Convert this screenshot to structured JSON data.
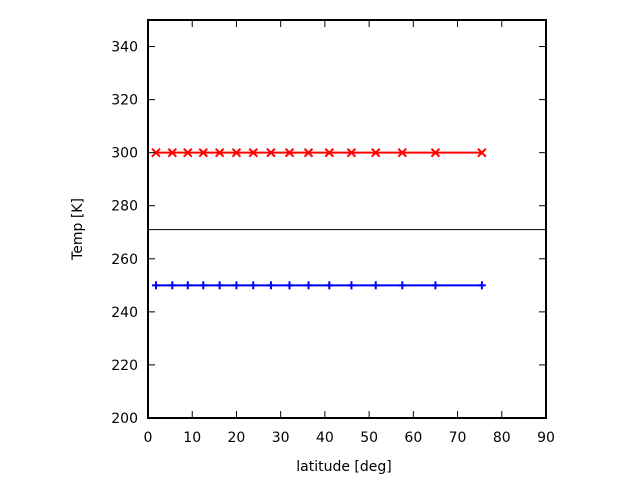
{
  "chart_data": {
    "type": "line",
    "title": "",
    "xlabel": "latitude [deg]",
    "ylabel": "Temp [K]",
    "xlim": [
      0,
      90
    ],
    "ylim": [
      200,
      350
    ],
    "x_ticks": [
      0,
      10,
      20,
      30,
      40,
      50,
      60,
      70,
      80,
      90
    ],
    "y_ticks": [
      200,
      220,
      240,
      260,
      280,
      300,
      320,
      340
    ],
    "grid": false,
    "legend": "none",
    "reference_line": {
      "y": 271
    },
    "series": [
      {
        "color": "#ff0000",
        "marker": "x",
        "points": [
          {
            "x": 1.8,
            "y": 300
          },
          {
            "x": 5.5,
            "y": 300
          },
          {
            "x": 9.0,
            "y": 300
          },
          {
            "x": 12.5,
            "y": 300
          },
          {
            "x": 16.2,
            "y": 300
          },
          {
            "x": 20.0,
            "y": 300
          },
          {
            "x": 23.8,
            "y": 300
          },
          {
            "x": 27.8,
            "y": 300
          },
          {
            "x": 32.0,
            "y": 300
          },
          {
            "x": 36.3,
            "y": 300
          },
          {
            "x": 41.0,
            "y": 300
          },
          {
            "x": 46.0,
            "y": 300
          },
          {
            "x": 51.5,
            "y": 300
          },
          {
            "x": 57.5,
            "y": 300
          },
          {
            "x": 65.0,
            "y": 300
          },
          {
            "x": 75.5,
            "y": 300
          }
        ]
      },
      {
        "color": "#0000ff",
        "marker": "+",
        "points": [
          {
            "x": 1.8,
            "y": 250
          },
          {
            "x": 5.5,
            "y": 250
          },
          {
            "x": 9.0,
            "y": 250
          },
          {
            "x": 12.5,
            "y": 250
          },
          {
            "x": 16.2,
            "y": 250
          },
          {
            "x": 20.0,
            "y": 250
          },
          {
            "x": 23.8,
            "y": 250
          },
          {
            "x": 27.8,
            "y": 250
          },
          {
            "x": 32.0,
            "y": 250
          },
          {
            "x": 36.3,
            "y": 250
          },
          {
            "x": 41.0,
            "y": 250
          },
          {
            "x": 46.0,
            "y": 250
          },
          {
            "x": 51.5,
            "y": 250
          },
          {
            "x": 57.5,
            "y": 250
          },
          {
            "x": 65.0,
            "y": 250
          },
          {
            "x": 75.5,
            "y": 250
          }
        ]
      }
    ]
  }
}
